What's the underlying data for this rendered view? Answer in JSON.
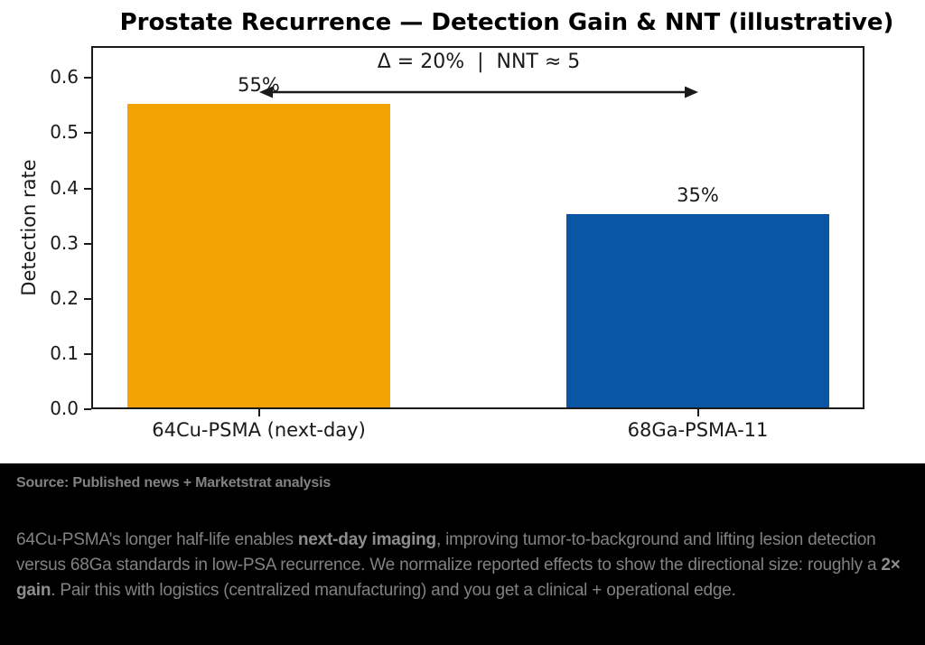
{
  "chart_data": {
    "type": "bar",
    "title": "Prostate Recurrence — Detection Gain & NNT (illustrative)",
    "categories": [
      "64Cu-PSMA (next-day)",
      "68Ga-PSMA-11"
    ],
    "values": [
      0.55,
      0.35
    ],
    "bar_labels": [
      "55%",
      "35%"
    ],
    "bar_colors": [
      "#F2A202",
      "#0856A4"
    ],
    "xlabel": "",
    "ylabel": "Detection rate",
    "ylim": [
      0.0,
      0.66
    ],
    "yticks": [
      0.0,
      0.1,
      0.2,
      0.3,
      0.4,
      0.5,
      0.6
    ],
    "grid": false,
    "legend": null,
    "annotation": "Δ = 20%  |  NNT ≈ 5",
    "annotation_arrow": "double-headed horizontal arrow between the two bar centers",
    "axis_color": "#1a1a1a"
  },
  "footer": {
    "source": "Source: Published news + Marketstrat analysis",
    "paragraph_segments": [
      {
        "text": "64Cu-PSMA’s longer half-life enables ",
        "bold": false
      },
      {
        "text": "next-day imaging",
        "bold": true
      },
      {
        "text": ", improving tumor-to-background and lifting lesion detection versus 68Ga standards in low-PSA recurrence. We normalize reported effects to show the directional size: roughly a ",
        "bold": false
      },
      {
        "text": "2× gain",
        "bold": true
      },
      {
        "text": ". Pair this with logistics (centralized manufacturing) and you get a clinical + operational edge.",
        "bold": false
      }
    ],
    "background": "#000000",
    "text_color": "#828282"
  }
}
